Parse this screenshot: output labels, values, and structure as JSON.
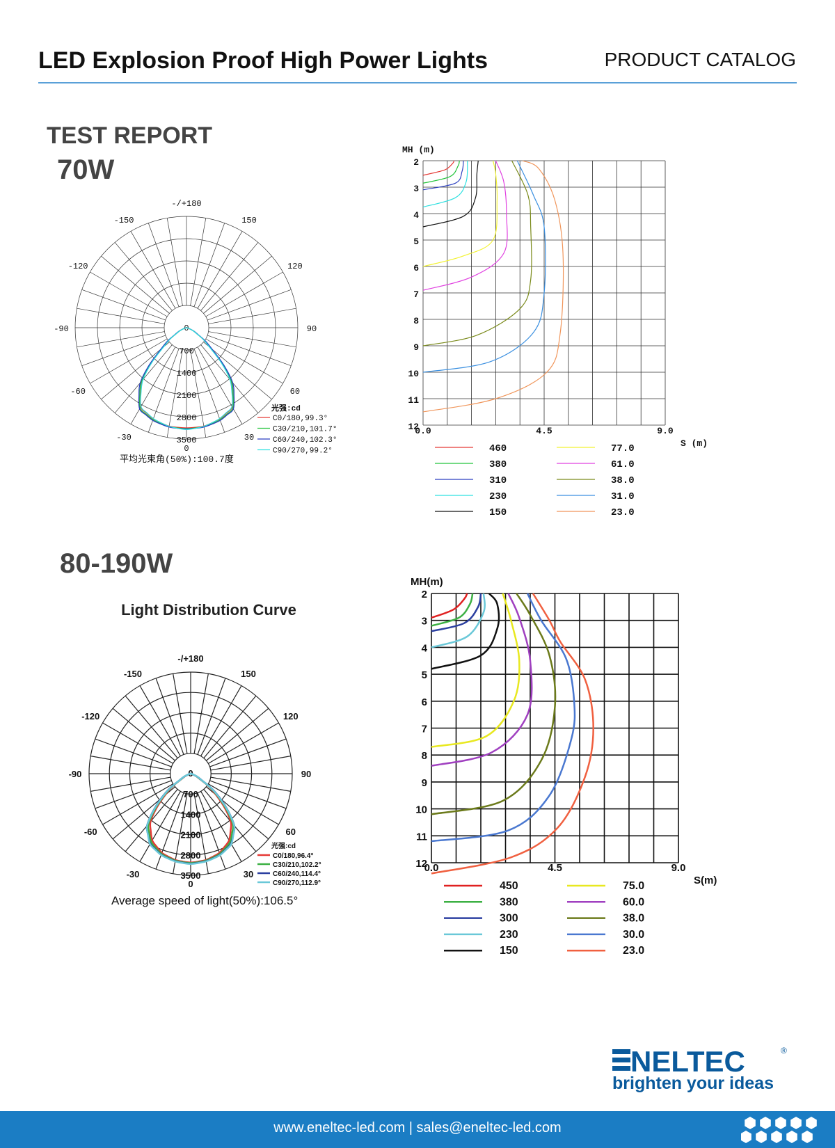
{
  "header": {
    "title": "LED Explosion Proof High Power Lights",
    "catalog": "PRODUCT CATALOG"
  },
  "section_label": "TEST REPORT",
  "sections": [
    {
      "label": "70W"
    },
    {
      "label": "80-190W"
    }
  ],
  "logo": {
    "name": "ENELTEC",
    "tagline": "brighten your ideas",
    "mark": "®",
    "color": "#0a5a9c"
  },
  "footer": {
    "contact": "www.eneltec-led.com | sales@eneltec-led.com",
    "bg": "#1b7dc4"
  },
  "chart_data": [
    {
      "type": "polar",
      "title": "",
      "angle_labels": [
        {
          "a": 180,
          "t": "-/+180"
        },
        {
          "a": -150,
          "t": "-150"
        },
        {
          "a": 150,
          "t": "150"
        },
        {
          "a": -120,
          "t": "-120"
        },
        {
          "a": 120,
          "t": "120"
        },
        {
          "a": -90,
          "t": "-90"
        },
        {
          "a": 90,
          "t": "90"
        },
        {
          "a": -60,
          "t": "-60"
        },
        {
          "a": 60,
          "t": "60"
        },
        {
          "a": -30,
          "t": "-30"
        },
        {
          "a": 30,
          "t": "30"
        },
        {
          "a": 0,
          "t": "0"
        }
      ],
      "radial_ticks": [
        "0",
        "700",
        "1400",
        "2100",
        "2800",
        "3500"
      ],
      "rmax": 3500,
      "legend_title": "光强:cd",
      "caption": "平均光束角(50%):100.7度",
      "angles": [
        0,
        10,
        20,
        30,
        40,
        50,
        60,
        70,
        80,
        90
      ],
      "series": [
        {
          "name": "C0/180,99.3°",
          "color": "#e53935",
          "values": [
            3150,
            3140,
            3050,
            2880,
            2150,
            950,
            360,
            100,
            20,
            0
          ]
        },
        {
          "name": "C30/210,101.7°",
          "color": "#22c33a",
          "values": [
            3170,
            3160,
            3080,
            2920,
            2200,
            1000,
            380,
            110,
            20,
            0
          ]
        },
        {
          "name": "C60/240,102.3°",
          "color": "#2b3fc0",
          "values": [
            3180,
            3170,
            3100,
            2950,
            2260,
            1050,
            400,
            120,
            20,
            0
          ]
        },
        {
          "name": "C90/270,99.2°",
          "color": "#2ee0e0",
          "values": [
            3200,
            3150,
            3040,
            2860,
            2120,
            930,
            350,
            100,
            20,
            0
          ]
        }
      ]
    },
    {
      "type": "line",
      "xlabel": "S (m)",
      "ylabel": "MH (m)",
      "xlim": [
        0,
        9
      ],
      "ylim": [
        2,
        12
      ],
      "x_ticks": [
        "0.0",
        "4.5",
        "9.0"
      ],
      "y_ticks": [
        "2",
        "3",
        "4",
        "5",
        "6",
        "7",
        "8",
        "9",
        "10",
        "11",
        "12"
      ],
      "grid": true,
      "series": [
        {
          "name": "460",
          "color": "#e53935",
          "points": [
            [
              0,
              2.55
            ],
            [
              0.8,
              2.35
            ],
            [
              1.1,
              2.1
            ],
            [
              1.15,
              2
            ]
          ]
        },
        {
          "name": "380",
          "color": "#22c33a",
          "points": [
            [
              0,
              2.85
            ],
            [
              1.0,
              2.6
            ],
            [
              1.3,
              2.2
            ],
            [
              1.35,
              2
            ]
          ]
        },
        {
          "name": "310",
          "color": "#2b3fc0",
          "points": [
            [
              0,
              3.1
            ],
            [
              1.2,
              2.85
            ],
            [
              1.45,
              2.4
            ],
            [
              1.5,
              2
            ]
          ]
        },
        {
          "name": "230",
          "color": "#2ee0e0",
          "points": [
            [
              0,
              3.75
            ],
            [
              1.2,
              3.4
            ],
            [
              1.6,
              2.8
            ],
            [
              1.65,
              2
            ]
          ]
        },
        {
          "name": "150",
          "color": "#111111",
          "points": [
            [
              0,
              4.5
            ],
            [
              1.5,
              4.1
            ],
            [
              1.95,
              3.4
            ],
            [
              2.0,
              2.5
            ],
            [
              2.05,
              2
            ]
          ]
        },
        {
          "name": "77.0",
          "color": "#f2f230",
          "points": [
            [
              0,
              6.0
            ],
            [
              1.5,
              5.6
            ],
            [
              2.6,
              5.0
            ],
            [
              2.75,
              3.5
            ],
            [
              2.7,
              2.5
            ],
            [
              2.6,
              2
            ]
          ]
        },
        {
          "name": "61.0",
          "color": "#e040e0",
          "points": [
            [
              0,
              6.9
            ],
            [
              1.8,
              6.4
            ],
            [
              3.0,
              5.5
            ],
            [
              3.1,
              4
            ],
            [
              3.0,
              2.8
            ],
            [
              2.7,
              2
            ]
          ]
        },
        {
          "name": "38.0",
          "color": "#7a8a1a",
          "points": [
            [
              0,
              9.0
            ],
            [
              2,
              8.6
            ],
            [
              3.6,
              7.6
            ],
            [
              4.0,
              6.5
            ],
            [
              4.0,
              4.5
            ],
            [
              3.9,
              3.3
            ],
            [
              3.3,
              2
            ]
          ]
        },
        {
          "name": "31.0",
          "color": "#3a8fe0",
          "points": [
            [
              0,
              10.0
            ],
            [
              2.5,
              9.6
            ],
            [
              4.1,
              8.5
            ],
            [
              4.5,
              7.0
            ],
            [
              4.5,
              4.5
            ],
            [
              4.1,
              3.3
            ],
            [
              3.5,
              2
            ]
          ]
        },
        {
          "name": "23.0",
          "color": "#f0955a",
          "points": [
            [
              0,
              11.5
            ],
            [
              2.7,
              11.0
            ],
            [
              4.6,
              10.0
            ],
            [
              5.1,
              8.5
            ],
            [
              5.2,
              5.5
            ],
            [
              4.9,
              3.5
            ],
            [
              4.3,
              2.3
            ],
            [
              3.7,
              2
            ]
          ]
        }
      ]
    },
    {
      "type": "polar",
      "title": "Light Distribution Curve",
      "angle_labels": [
        {
          "a": 180,
          "t": "-/+180"
        },
        {
          "a": -150,
          "t": "-150"
        },
        {
          "a": 150,
          "t": "150"
        },
        {
          "a": -120,
          "t": "-120"
        },
        {
          "a": 120,
          "t": "120"
        },
        {
          "a": -90,
          "t": "-90"
        },
        {
          "a": 90,
          "t": "90"
        },
        {
          "a": -60,
          "t": "-60"
        },
        {
          "a": 60,
          "t": "60"
        },
        {
          "a": -30,
          "t": "-30"
        },
        {
          "a": 30,
          "t": "30"
        },
        {
          "a": 0,
          "t": "0"
        }
      ],
      "radial_ticks": [
        "0",
        "700",
        "1400",
        "2100",
        "2800",
        "3500"
      ],
      "rmax": 3500,
      "legend_title": "光强:cd",
      "caption": "Average speed of light(50%):106.5°",
      "angles": [
        0,
        10,
        20,
        30,
        40,
        50,
        60,
        70,
        80,
        90
      ],
      "series": [
        {
          "name": "C0/180,96.4°",
          "color": "#e53935",
          "values": [
            3060,
            3020,
            2900,
            2650,
            2150,
            1150,
            350,
            90,
            0,
            0
          ]
        },
        {
          "name": "C30/210,102.2°",
          "color": "#3cb043",
          "values": [
            3080,
            3040,
            2940,
            2720,
            2260,
            1250,
            380,
            100,
            0,
            0
          ]
        },
        {
          "name": "C60/240,114.4°",
          "color": "#2b3fa0",
          "values": [
            3100,
            3060,
            2970,
            2780,
            2340,
            1330,
            420,
            110,
            0,
            0
          ]
        },
        {
          "name": "C90/270,112.9°",
          "color": "#6ac8d8",
          "values": [
            3110,
            3070,
            2980,
            2800,
            2330,
            1300,
            410,
            110,
            0,
            0
          ]
        }
      ]
    },
    {
      "type": "line",
      "xlabel": "S(m)",
      "ylabel": "MH(m)",
      "xlim": [
        0,
        9
      ],
      "ylim": [
        2,
        12
      ],
      "x_ticks": [
        "0.0",
        "4.5",
        "9.0"
      ],
      "y_ticks": [
        "2",
        "3",
        "4",
        "5",
        "6",
        "7",
        "8",
        "9",
        "10",
        "11",
        "12"
      ],
      "grid": true,
      "series": [
        {
          "name": "450",
          "color": "#e02020",
          "points": [
            [
              0,
              2.9
            ],
            [
              0.8,
              2.6
            ],
            [
              1.2,
              2.2
            ],
            [
              1.3,
              2
            ]
          ]
        },
        {
          "name": "380",
          "color": "#3cb043",
          "points": [
            [
              0,
              3.2
            ],
            [
              1.0,
              2.9
            ],
            [
              1.4,
              2.4
            ],
            [
              1.5,
              2
            ]
          ]
        },
        {
          "name": "300",
          "color": "#2b3fa0",
          "points": [
            [
              0,
              3.4
            ],
            [
              1.2,
              3.1
            ],
            [
              1.7,
              2.5
            ],
            [
              1.8,
              2
            ]
          ]
        },
        {
          "name": "230",
          "color": "#6ac8d8",
          "points": [
            [
              0,
              4.0
            ],
            [
              1.3,
              3.6
            ],
            [
              1.9,
              2.7
            ],
            [
              1.9,
              2
            ]
          ]
        },
        {
          "name": "150",
          "color": "#111111",
          "points": [
            [
              0,
              4.8
            ],
            [
              1.8,
              4.3
            ],
            [
              2.4,
              3.3
            ],
            [
              2.4,
              2.4
            ],
            [
              2.1,
              2
            ]
          ]
        },
        {
          "name": "75.0",
          "color": "#e8e820",
          "points": [
            [
              0,
              7.7
            ],
            [
              2.0,
              7.3
            ],
            [
              3.0,
              6.0
            ],
            [
              3.2,
              4.5
            ],
            [
              2.9,
              3.0
            ],
            [
              2.6,
              2
            ]
          ]
        },
        {
          "name": "60.0",
          "color": "#a040c0",
          "points": [
            [
              0,
              8.4
            ],
            [
              2.2,
              7.9
            ],
            [
              3.5,
              6.5
            ],
            [
              3.6,
              4.5
            ],
            [
              3.2,
              2.9
            ],
            [
              2.8,
              2
            ]
          ]
        },
        {
          "name": "38.0",
          "color": "#6b7a1a",
          "points": [
            [
              0,
              10.2
            ],
            [
              2.6,
              9.7
            ],
            [
              4.0,
              8.2
            ],
            [
              4.5,
              6.2
            ],
            [
              4.3,
              4.3
            ],
            [
              3.6,
              2.8
            ],
            [
              3.1,
              2
            ]
          ]
        },
        {
          "name": "30.0",
          "color": "#4a78d0",
          "points": [
            [
              0,
              11.2
            ],
            [
              2.8,
              10.8
            ],
            [
              4.3,
              9.5
            ],
            [
              5.1,
              7.4
            ],
            [
              5.2,
              6
            ],
            [
              4.9,
              4.4
            ],
            [
              4.0,
              3.0
            ],
            [
              3.5,
              2
            ]
          ]
        },
        {
          "name": "23.0",
          "color": "#f06040",
          "points": [
            [
              0,
              12.4
            ],
            [
              2.9,
              11.8
            ],
            [
              4.6,
              10.7
            ],
            [
              5.6,
              8.8
            ],
            [
              5.9,
              7
            ],
            [
              5.6,
              5.2
            ],
            [
              4.7,
              3.8
            ],
            [
              4.3,
              3.0
            ],
            [
              3.7,
              2
            ]
          ]
        }
      ]
    }
  ]
}
